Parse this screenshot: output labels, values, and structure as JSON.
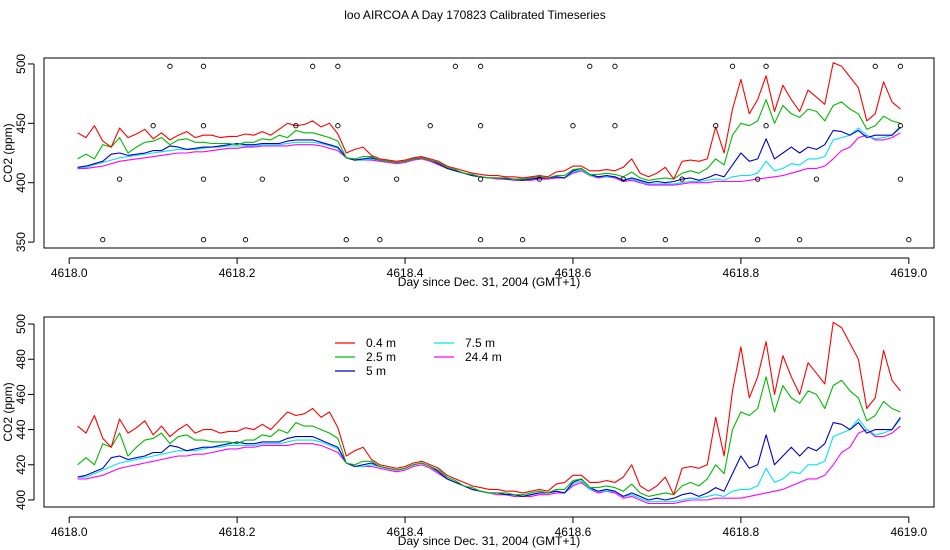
{
  "figure_title": "loo AIRCOA A  Day 170823  Calibrated Timeseries",
  "colors": {
    "0.4 m": "#ff0000",
    "2.5 m": "#00bb00",
    "5 m": "#0000cc",
    "7.5 m": "#00e5ee",
    "24.4 m": "#ff00ff",
    "points": "#000000"
  },
  "chart_data": [
    {
      "type": "line",
      "title": "",
      "xlabel": "Day since Dec. 31, 2004 (GMT+1)",
      "ylabel": "CO2 (ppm)",
      "xlim": [
        4617.97,
        4619.03
      ],
      "ylim": [
        345,
        505
      ],
      "xticks": [
        "4618.0",
        "4618.2",
        "4618.4",
        "4618.6",
        "4618.8",
        "4619.0"
      ],
      "yticks": [
        "350",
        "400",
        "450",
        "500"
      ],
      "legend": "none",
      "x": [
        4618.01,
        4618.02,
        4618.03,
        4618.04,
        4618.05,
        4618.06,
        4618.07,
        4618.08,
        4618.09,
        4618.1,
        4618.11,
        4618.12,
        4618.13,
        4618.14,
        4618.15,
        4618.16,
        4618.17,
        4618.18,
        4618.19,
        4618.2,
        4618.21,
        4618.22,
        4618.23,
        4618.24,
        4618.25,
        4618.26,
        4618.27,
        4618.28,
        4618.29,
        4618.3,
        4618.31,
        4618.32,
        4618.33,
        4618.34,
        4618.35,
        4618.36,
        4618.37,
        4618.38,
        4618.39,
        4618.4,
        4618.41,
        4618.42,
        4618.43,
        4618.44,
        4618.45,
        4618.46,
        4618.47,
        4618.48,
        4618.49,
        4618.5,
        4618.51,
        4618.52,
        4618.53,
        4618.54,
        4618.55,
        4618.56,
        4618.57,
        4618.58,
        4618.59,
        4618.6,
        4618.61,
        4618.62,
        4618.63,
        4618.64,
        4618.65,
        4618.66,
        4618.67,
        4618.68,
        4618.69,
        4618.7,
        4618.71,
        4618.72,
        4618.73,
        4618.74,
        4618.75,
        4618.76,
        4618.77,
        4618.78,
        4618.79,
        4618.8,
        4618.81,
        4618.82,
        4618.83,
        4618.84,
        4618.85,
        4618.86,
        4618.87,
        4618.88,
        4618.89,
        4618.9,
        4618.91,
        4618.92,
        4618.93,
        4618.94,
        4618.95,
        4618.96,
        4618.97,
        4618.98,
        4618.99
      ],
      "series": [
        {
          "name": "0.4 m",
          "values": [
            442,
            438,
            448,
            435,
            430,
            446,
            438,
            441,
            445,
            437,
            442,
            436,
            440,
            443,
            438,
            440,
            440,
            438,
            439,
            439,
            441,
            440,
            443,
            440,
            445,
            450,
            448,
            449,
            452,
            447,
            450,
            441,
            425,
            428,
            430,
            423,
            420,
            419,
            418,
            419,
            421,
            422,
            420,
            418,
            414,
            412,
            410,
            408,
            407,
            406,
            406,
            405,
            405,
            404,
            405,
            406,
            405,
            409,
            410,
            414,
            414,
            410,
            410,
            411,
            410,
            413,
            420,
            408,
            405,
            408,
            413,
            403,
            418,
            419,
            418,
            420,
            447,
            425,
            462,
            487,
            458,
            470,
            490,
            460,
            482,
            470,
            460,
            478,
            472,
            466,
            501,
            498,
            489,
            480,
            452,
            458,
            485,
            468,
            462
          ]
        },
        {
          "name": "2.5 m",
          "values": [
            420,
            424,
            420,
            432,
            430,
            438,
            425,
            430,
            434,
            435,
            438,
            432,
            436,
            437,
            434,
            434,
            433,
            433,
            433,
            432,
            434,
            434,
            437,
            436,
            440,
            438,
            444,
            442,
            442,
            440,
            438,
            435,
            421,
            420,
            422,
            422,
            419,
            418,
            417,
            418,
            420,
            421,
            419,
            417,
            413,
            411,
            408,
            407,
            405,
            404,
            404,
            404,
            403,
            403,
            404,
            405,
            404,
            406,
            406,
            411,
            412,
            407,
            407,
            408,
            407,
            405,
            409,
            404,
            402,
            403,
            404,
            403,
            408,
            410,
            408,
            412,
            420,
            415,
            440,
            450,
            448,
            452,
            470,
            450,
            465,
            458,
            455,
            462,
            460,
            452,
            465,
            468,
            462,
            458,
            445,
            448,
            456,
            452,
            450
          ]
        },
        {
          "name": "5 m",
          "values": [
            413,
            414,
            416,
            418,
            424,
            425,
            423,
            424,
            425,
            427,
            427,
            431,
            430,
            428,
            429,
            430,
            430,
            431,
            432,
            433,
            432,
            432,
            433,
            433,
            433,
            435,
            436,
            436,
            436,
            434,
            432,
            430,
            421,
            419,
            420,
            421,
            419,
            418,
            417,
            418,
            420,
            421,
            419,
            416,
            412,
            410,
            408,
            406,
            405,
            404,
            404,
            403,
            403,
            402,
            403,
            404,
            404,
            405,
            404,
            410,
            412,
            407,
            405,
            406,
            405,
            402,
            404,
            402,
            400,
            401,
            400,
            401,
            403,
            404,
            402,
            404,
            407,
            405,
            415,
            425,
            418,
            420,
            437,
            420,
            425,
            430,
            425,
            430,
            428,
            432,
            444,
            443,
            440,
            444,
            438,
            440,
            440,
            440,
            447
          ]
        },
        {
          "name": "7.5 m",
          "values": [
            413,
            413,
            415,
            417,
            419,
            421,
            422,
            423,
            424,
            425,
            426,
            427,
            428,
            428,
            428,
            429,
            430,
            430,
            431,
            431,
            431,
            431,
            432,
            432,
            432,
            433,
            434,
            434,
            434,
            433,
            431,
            429,
            421,
            419,
            419,
            420,
            419,
            418,
            417,
            418,
            420,
            421,
            419,
            416,
            412,
            410,
            408,
            406,
            405,
            404,
            404,
            403,
            403,
            402,
            403,
            404,
            404,
            405,
            404,
            409,
            411,
            406,
            405,
            405,
            405,
            402,
            403,
            401,
            399,
            399,
            399,
            399,
            400,
            401,
            401,
            402,
            403,
            402,
            405,
            406,
            406,
            408,
            418,
            410,
            412,
            416,
            415,
            420,
            420,
            422,
            436,
            438,
            440,
            446,
            440,
            437,
            438,
            440,
            446
          ]
        },
        {
          "name": "24.4 m",
          "values": [
            412,
            412,
            413,
            414,
            416,
            418,
            419,
            420,
            421,
            422,
            423,
            424,
            425,
            425,
            426,
            426,
            427,
            428,
            429,
            429,
            430,
            430,
            431,
            431,
            431,
            431,
            432,
            432,
            432,
            431,
            429,
            427,
            421,
            419,
            419,
            419,
            418,
            417,
            416,
            417,
            419,
            420,
            418,
            415,
            412,
            410,
            408,
            406,
            405,
            404,
            403,
            403,
            402,
            402,
            402,
            403,
            403,
            404,
            404,
            408,
            410,
            406,
            404,
            405,
            404,
            401,
            402,
            400,
            398,
            398,
            398,
            398,
            399,
            400,
            400,
            400,
            401,
            401,
            401,
            401,
            402,
            403,
            404,
            405,
            406,
            408,
            410,
            412,
            412,
            414,
            420,
            427,
            430,
            438,
            440,
            436,
            436,
            438,
            442
          ]
        }
      ],
      "points": [
        {
          "x": 4618.04,
          "y": 352
        },
        {
          "x": 4618.06,
          "y": 403
        },
        {
          "x": 4618.1,
          "y": 448
        },
        {
          "x": 4618.12,
          "y": 498
        },
        {
          "x": 4618.16,
          "y": 352
        },
        {
          "x": 4618.16,
          "y": 403
        },
        {
          "x": 4618.16,
          "y": 448
        },
        {
          "x": 4618.16,
          "y": 498
        },
        {
          "x": 4618.21,
          "y": 352
        },
        {
          "x": 4618.23,
          "y": 403
        },
        {
          "x": 4618.27,
          "y": 448
        },
        {
          "x": 4618.29,
          "y": 498
        },
        {
          "x": 4618.32,
          "y": 498
        },
        {
          "x": 4618.32,
          "y": 448
        },
        {
          "x": 4618.33,
          "y": 403
        },
        {
          "x": 4618.33,
          "y": 352
        },
        {
          "x": 4618.37,
          "y": 352
        },
        {
          "x": 4618.39,
          "y": 403
        },
        {
          "x": 4618.43,
          "y": 448
        },
        {
          "x": 4618.46,
          "y": 498
        },
        {
          "x": 4618.49,
          "y": 352
        },
        {
          "x": 4618.49,
          "y": 403
        },
        {
          "x": 4618.49,
          "y": 448
        },
        {
          "x": 4618.49,
          "y": 498
        },
        {
          "x": 4618.54,
          "y": 352
        },
        {
          "x": 4618.56,
          "y": 403
        },
        {
          "x": 4618.6,
          "y": 448
        },
        {
          "x": 4618.62,
          "y": 498
        },
        {
          "x": 4618.65,
          "y": 498
        },
        {
          "x": 4618.65,
          "y": 448
        },
        {
          "x": 4618.66,
          "y": 403
        },
        {
          "x": 4618.66,
          "y": 352
        },
        {
          "x": 4618.71,
          "y": 352
        },
        {
          "x": 4618.73,
          "y": 403
        },
        {
          "x": 4618.77,
          "y": 448
        },
        {
          "x": 4618.79,
          "y": 498
        },
        {
          "x": 4618.82,
          "y": 352
        },
        {
          "x": 4618.82,
          "y": 403
        },
        {
          "x": 4618.83,
          "y": 448
        },
        {
          "x": 4618.83,
          "y": 498
        },
        {
          "x": 4618.87,
          "y": 352
        },
        {
          "x": 4618.89,
          "y": 403
        },
        {
          "x": 4618.96,
          "y": 498
        },
        {
          "x": 4618.99,
          "y": 498
        },
        {
          "x": 4618.99,
          "y": 448
        },
        {
          "x": 4618.99,
          "y": 403
        },
        {
          "x": 4619.0,
          "y": 352
        }
      ]
    },
    {
      "type": "line",
      "title": "",
      "xlabel": "Day since Dec. 31, 2004 (GMT+1)",
      "ylabel": "CO2 (ppm)",
      "xlim": [
        4617.97,
        4619.03
      ],
      "ylim": [
        396,
        504
      ],
      "xticks": [
        "4618.0",
        "4618.2",
        "4618.4",
        "4618.6",
        "4618.8",
        "4619.0"
      ],
      "yticks": [
        "400",
        "420",
        "440",
        "460",
        "480",
        "500"
      ],
      "legend": "top-left",
      "legend_labels": [
        "0.4 m",
        "2.5 m",
        "5 m",
        "7.5 m",
        "24.4 m"
      ]
    }
  ]
}
